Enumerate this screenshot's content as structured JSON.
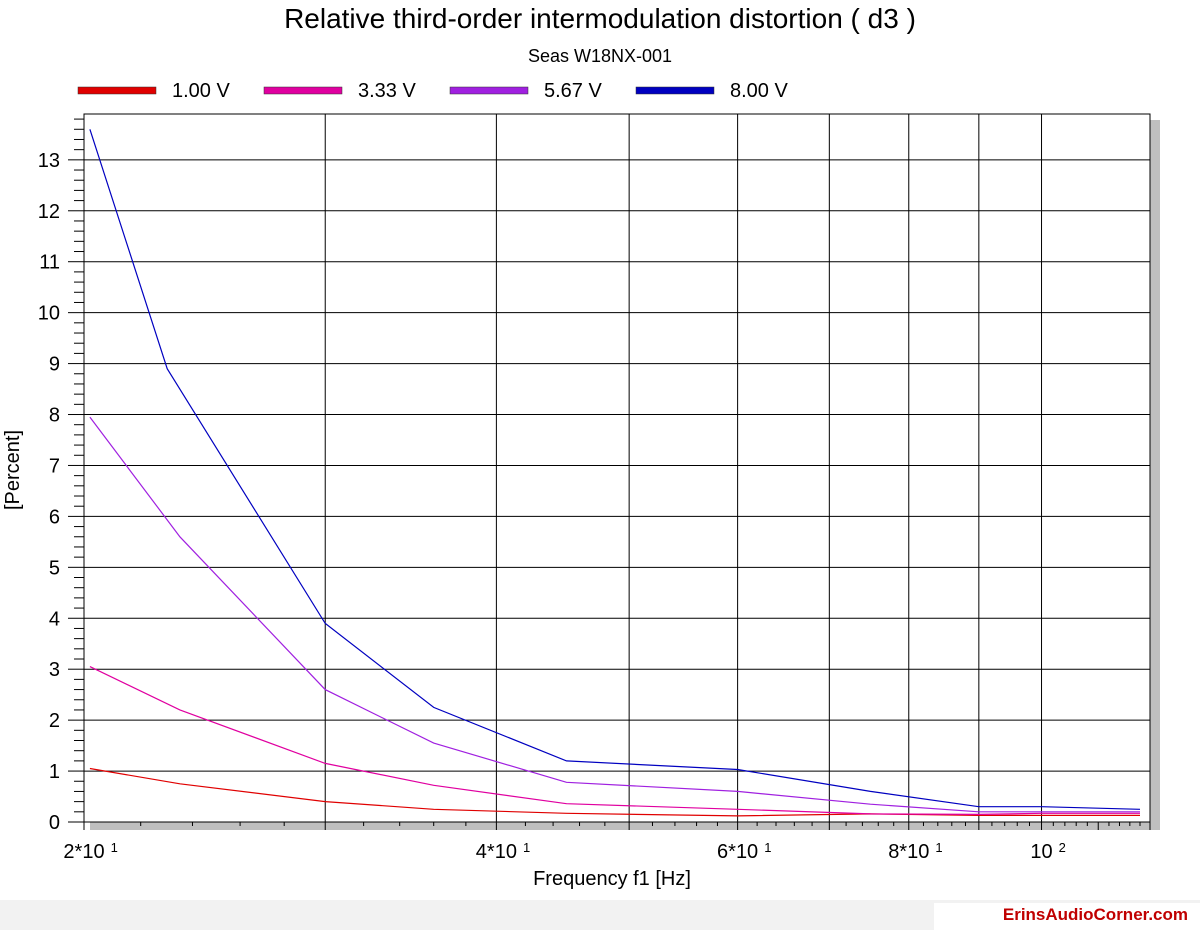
{
  "chart_data": {
    "type": "line",
    "title": "Relative third-order intermodulation distortion  ( d3 )",
    "subtitle": "Seas W18NX-001",
    "xlabel": "Frequency f1  [Hz]",
    "ylabel": "[Percent]",
    "x_scale": "log",
    "xlim": [
      20,
      120
    ],
    "ylim": [
      0,
      13.9
    ],
    "grid": true,
    "legend_position": "top",
    "x_ticks": [
      {
        "value": 20,
        "base": "2*10",
        "exp": "1"
      },
      {
        "value": 40,
        "base": "4*10",
        "exp": "1"
      },
      {
        "value": 60,
        "base": "6*10",
        "exp": "1"
      },
      {
        "value": 80,
        "base": "8*10",
        "exp": "1"
      },
      {
        "value": 100,
        "base": "10",
        "exp": "2"
      }
    ],
    "y_ticks": [
      "0",
      "1",
      "2",
      "3",
      "4",
      "5",
      "6",
      "7",
      "8",
      "9",
      "10",
      "11",
      "12",
      "13"
    ],
    "series": [
      {
        "name": "1.00 V",
        "color": "#e00000",
        "x": [
          20.2,
          23.5,
          30,
          36,
          45,
          60,
          75,
          90,
          100,
          118
        ],
        "y": [
          1.05,
          0.75,
          0.4,
          0.25,
          0.17,
          0.12,
          0.16,
          0.13,
          0.13,
          0.13
        ]
      },
      {
        "name": "3.33 V",
        "color": "#e000a0",
        "x": [
          20.2,
          23.5,
          30,
          36,
          45,
          60,
          75,
          90,
          100,
          118
        ],
        "y": [
          3.05,
          2.2,
          1.15,
          0.72,
          0.36,
          0.25,
          0.16,
          0.15,
          0.17,
          0.17
        ]
      },
      {
        "name": "5.67 V",
        "color": "#a020e0",
        "x": [
          20.2,
          23.5,
          30,
          36,
          45,
          60,
          75,
          90,
          100,
          118
        ],
        "y": [
          7.95,
          5.6,
          2.6,
          1.55,
          0.78,
          0.6,
          0.35,
          0.2,
          0.2,
          0.2
        ]
      },
      {
        "name": "8.00 V",
        "color": "#0000c0",
        "x": [
          20.2,
          23,
          30,
          36,
          45,
          60,
          75,
          90,
          100,
          118
        ],
        "y": [
          13.6,
          8.9,
          3.9,
          2.25,
          1.2,
          1.03,
          0.6,
          0.3,
          0.3,
          0.25
        ]
      }
    ]
  },
  "footer": {
    "watermark": "ErinsAudioCorner.com"
  }
}
